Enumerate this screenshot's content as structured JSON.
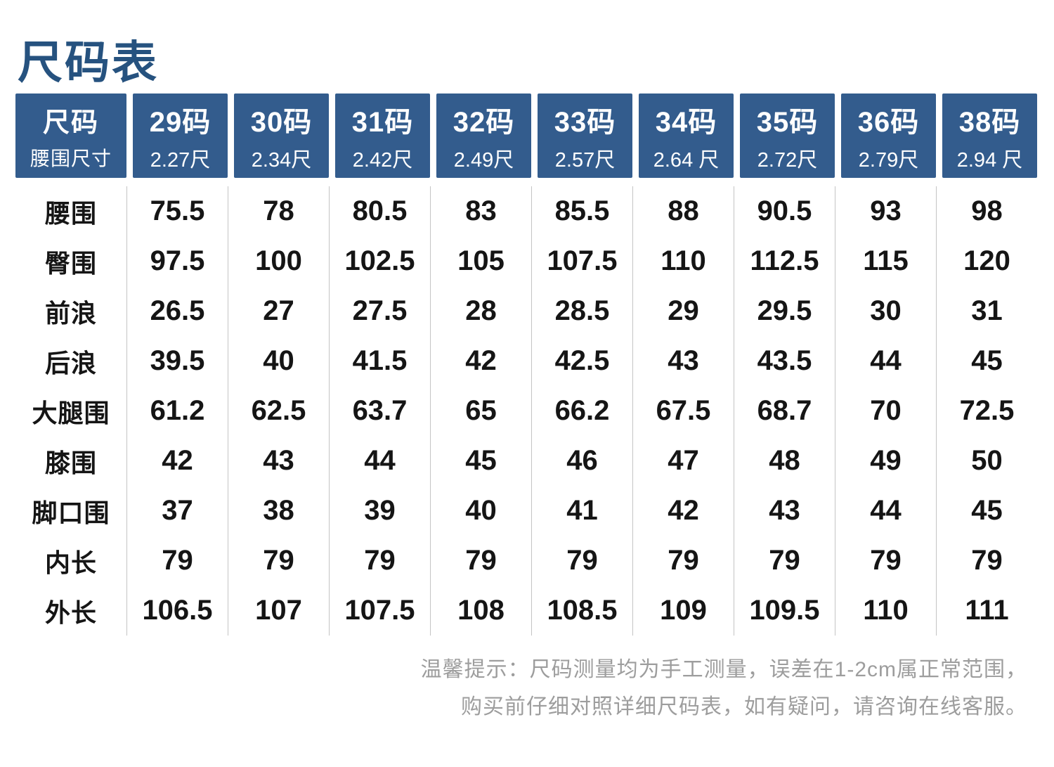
{
  "page": {
    "title": "尺码表"
  },
  "colors": {
    "title_color": "#26527f",
    "header_bg": "#335c8d",
    "header_text": "#ffffff",
    "data_text": "#151515",
    "divider_color": "#c4c4c4",
    "note_color": "#9d9d9d",
    "page_bg": "#ffffff"
  },
  "table": {
    "corner": {
      "line1": "尺码",
      "line2": "腰围尺寸"
    },
    "columns": [
      {
        "size": "29码",
        "chi": "2.27尺"
      },
      {
        "size": "30码",
        "chi": "2.34尺"
      },
      {
        "size": "31码",
        "chi": "2.42尺"
      },
      {
        "size": "32码",
        "chi": "2.49尺"
      },
      {
        "size": "33码",
        "chi": "2.57尺"
      },
      {
        "size": "34码",
        "chi": "2.64 尺"
      },
      {
        "size": "35码",
        "chi": "2.72尺"
      },
      {
        "size": "36码",
        "chi": "2.79尺"
      },
      {
        "size": "38码",
        "chi": "2.94 尺"
      }
    ],
    "rows": [
      {
        "label": "腰围",
        "values": [
          "75.5",
          "78",
          "80.5",
          "83",
          "85.5",
          "88",
          "90.5",
          "93",
          "98"
        ]
      },
      {
        "label": "臀围",
        "values": [
          "97.5",
          "100",
          "102.5",
          "105",
          "107.5",
          "110",
          "112.5",
          "115",
          "120"
        ]
      },
      {
        "label": "前浪",
        "values": [
          "26.5",
          "27",
          "27.5",
          "28",
          "28.5",
          "29",
          "29.5",
          "30",
          "31"
        ]
      },
      {
        "label": "后浪",
        "values": [
          "39.5",
          "40",
          "41.5",
          "42",
          "42.5",
          "43",
          "43.5",
          "44",
          "45"
        ]
      },
      {
        "label": "大腿围",
        "values": [
          "61.2",
          "62.5",
          "63.7",
          "65",
          "66.2",
          "67.5",
          "68.7",
          "70",
          "72.5"
        ]
      },
      {
        "label": "膝围",
        "values": [
          "42",
          "43",
          "44",
          "45",
          "46",
          "47",
          "48",
          "49",
          "50"
        ]
      },
      {
        "label": "脚口围",
        "values": [
          "37",
          "38",
          "39",
          "40",
          "41",
          "42",
          "43",
          "44",
          "45"
        ]
      },
      {
        "label": "内长",
        "values": [
          "79",
          "79",
          "79",
          "79",
          "79",
          "79",
          "79",
          "79",
          "79"
        ]
      },
      {
        "label": "外长",
        "values": [
          "106.5",
          "107",
          "107.5",
          "108",
          "108.5",
          "109",
          "109.5",
          "110",
          "111"
        ]
      }
    ]
  },
  "note": {
    "line1": "温馨提示：尺码测量均为手工测量，误差在1-2cm属正常范围，",
    "line2": "购买前仔细对照详细尺码表，如有疑问，请咨询在线客服。"
  }
}
